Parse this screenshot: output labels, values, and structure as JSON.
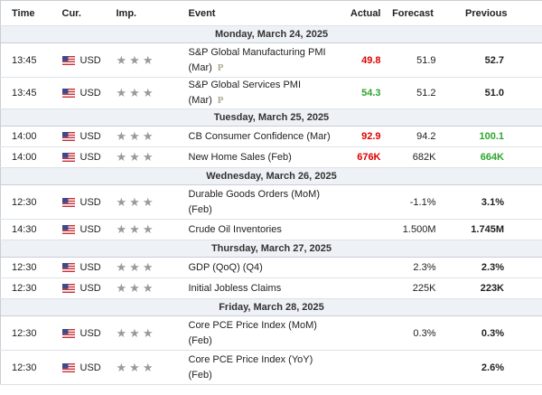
{
  "header": {
    "time": "Time",
    "currency": "Cur.",
    "importance": "Imp.",
    "event": "Event",
    "actual": "Actual",
    "forecast": "Forecast",
    "previous": "Previous"
  },
  "days": [
    {
      "date": "Monday, March 24, 2025",
      "rows": [
        {
          "time": "13:45",
          "currency": "USD",
          "event": "S&P Global Manufacturing PMI (Mar)",
          "badge": "P",
          "actual": "49.8",
          "actual_color": "#e00000",
          "forecast": "51.9",
          "previous": "52.7"
        },
        {
          "time": "13:45",
          "currency": "USD",
          "event": "S&P Global Services PMI (Mar)",
          "badge": "P",
          "actual": "54.3",
          "actual_color": "#2ea62e",
          "forecast": "51.2",
          "previous": "51.0"
        }
      ]
    },
    {
      "date": "Tuesday, March 25, 2025",
      "rows": [
        {
          "time": "14:00",
          "currency": "USD",
          "event": "CB Consumer Confidence (Mar)",
          "actual": "92.9",
          "actual_color": "#e00000",
          "forecast": "94.2",
          "previous": "100.1",
          "previous_color": "#2ea62e"
        },
        {
          "time": "14:00",
          "currency": "USD",
          "event": "New Home Sales (Feb)",
          "actual": "676K",
          "actual_color": "#e00000",
          "forecast": "682K",
          "previous": "664K",
          "previous_color": "#2ea62e"
        }
      ]
    },
    {
      "date": "Wednesday, March 26, 2025",
      "rows": [
        {
          "time": "12:30",
          "currency": "USD",
          "event": "Durable Goods Orders (MoM) (Feb)",
          "forecast": "-1.1%",
          "previous": "3.1%"
        },
        {
          "time": "14:30",
          "currency": "USD",
          "event": "Crude Oil Inventories",
          "forecast": "1.500M",
          "previous": "1.745M"
        }
      ]
    },
    {
      "date": "Thursday, March 27, 2025",
      "rows": [
        {
          "time": "12:30",
          "currency": "USD",
          "event": "GDP (QoQ) (Q4)",
          "forecast": "2.3%",
          "previous": "2.3%"
        },
        {
          "time": "12:30",
          "currency": "USD",
          "event": "Initial Jobless Claims",
          "forecast": "225K",
          "previous": "223K"
        }
      ]
    },
    {
      "date": "Friday, March 28, 2025",
      "rows": [
        {
          "time": "12:30",
          "currency": "USD",
          "event": "Core PCE Price Index (MoM) (Feb)",
          "forecast": "0.3%",
          "previous": "0.3%"
        },
        {
          "time": "12:30",
          "currency": "USD",
          "event": "Core PCE Price Index (YoY) (Feb)",
          "previous": "2.6%"
        }
      ]
    }
  ]
}
